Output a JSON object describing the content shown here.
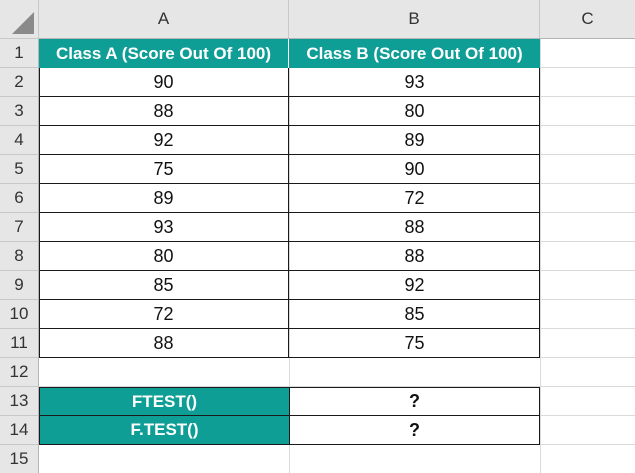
{
  "columns": [
    "A",
    "B",
    "C"
  ],
  "rows": [
    "1",
    "2",
    "3",
    "4",
    "5",
    "6",
    "7",
    "8",
    "9",
    "10",
    "11",
    "12",
    "13",
    "14",
    "15"
  ],
  "header": {
    "class_a": "Class A (Score Out Of 100)",
    "class_b": "Class B (Score Out Of 100)"
  },
  "class_a_scores": [
    "90",
    "88",
    "92",
    "75",
    "89",
    "93",
    "80",
    "85",
    "72",
    "88"
  ],
  "class_b_scores": [
    "93",
    "80",
    "89",
    "90",
    "72",
    "88",
    "88",
    "92",
    "85",
    "75"
  ],
  "functions": [
    {
      "name": "FTEST()",
      "result": "?"
    },
    {
      "name": "F.TEST()",
      "result": "?"
    }
  ],
  "colors": {
    "header_fill": "#0f9e96",
    "header_text": "#ffffff"
  }
}
